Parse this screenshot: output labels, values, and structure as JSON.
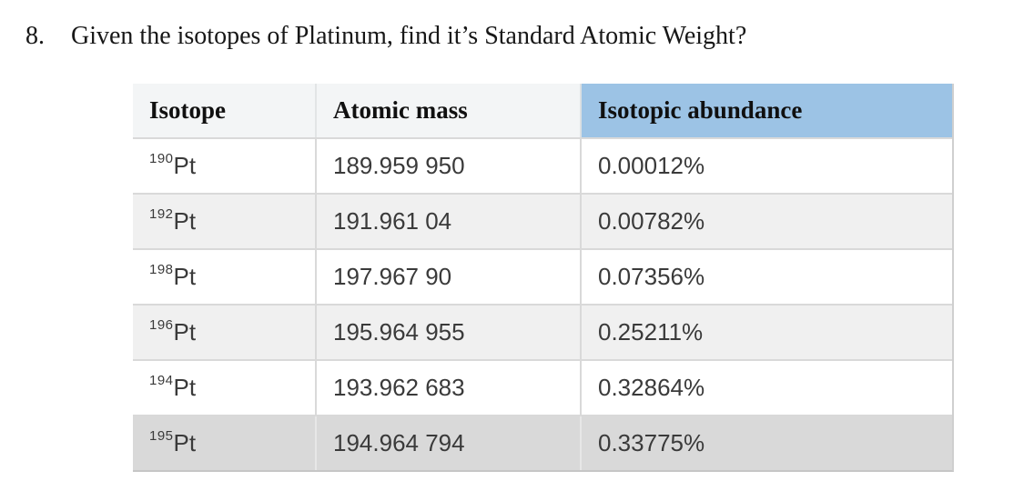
{
  "question": {
    "number": "8.",
    "text": "Given the isotopes of Platinum, find it’s Standard Atomic Weight?"
  },
  "table": {
    "columns": [
      {
        "label": "Isotope"
      },
      {
        "label": "Atomic mass"
      },
      {
        "label": "Isotopic abundance"
      }
    ],
    "rows": [
      {
        "mass_number": "190",
        "symbol": "Pt",
        "atomic_mass": "189.959 950",
        "abundance": "0.00012%"
      },
      {
        "mass_number": "192",
        "symbol": "Pt",
        "atomic_mass": "191.961 04",
        "abundance": "0.00782%"
      },
      {
        "mass_number": "198",
        "symbol": "Pt",
        "atomic_mass": "197.967 90",
        "abundance": "0.07356%"
      },
      {
        "mass_number": "196",
        "symbol": "Pt",
        "atomic_mass": "195.964 955",
        "abundance": "0.25211%"
      },
      {
        "mass_number": "194",
        "symbol": "Pt",
        "atomic_mass": "193.962 683",
        "abundance": "0.32864%"
      },
      {
        "mass_number": "195",
        "symbol": "Pt",
        "atomic_mass": "194.964 794",
        "abundance": "0.33775%"
      }
    ]
  },
  "colors": {
    "header_accent": "#9CC3E5",
    "header_light": "#F3F5F6",
    "row_alt": "#F0F0F0",
    "row_last": "#D9D9D9",
    "border": "#D9D9D9"
  }
}
